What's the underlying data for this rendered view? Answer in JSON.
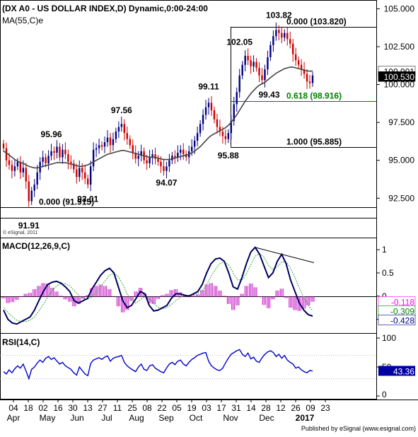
{
  "chart_data": {
    "type": "candlestick",
    "title": "(DX A0 - US DOLLAR INDEX,D) Dynamic,0:00-24:00",
    "ma_label": "MA(55,C)e",
    "watermark": "© eSignal, 2011",
    "footer": "Published by eSignal (www.esignal.com)",
    "price_axis": {
      "ticks": [
        "105.000",
        "102.500",
        "100.000",
        "97.500",
        "95.000",
        "92.500"
      ],
      "ylim": [
        91.3,
        105.3
      ]
    },
    "price_tags": [
      {
        "text": "100.901",
        "value": 100.901,
        "bg": "#ffffff",
        "fg": "#000000"
      },
      {
        "text": "100.530",
        "value": 100.53,
        "bg": "#000000",
        "fg": "#ffffff"
      }
    ],
    "price_annotations": [
      {
        "text": "91.91",
        "value": 91.91,
        "idx": 9
      },
      {
        "text": "95.96",
        "value": 95.96,
        "idx": 17
      },
      {
        "text": "93.01",
        "value": 93.01,
        "idx": 30
      },
      {
        "text": "97.56",
        "value": 97.56,
        "idx": 42
      },
      {
        "text": "94.07",
        "value": 94.07,
        "idx": 58
      },
      {
        "text": "99.11",
        "value": 99.11,
        "idx": 73
      },
      {
        "text": "95.88",
        "value": 95.88,
        "idx": 80
      },
      {
        "text": "102.05",
        "value": 102.05,
        "idx": 84
      },
      {
        "text": "103.82",
        "value": 103.82,
        "idx": 98
      },
      {
        "text": "99.43",
        "value": 99.43,
        "idx": 92
      }
    ],
    "fib_levels": [
      {
        "text": "0.000 (103.820)",
        "value": 103.82,
        "color": "#000000"
      },
      {
        "text": "0.618 (98.916)",
        "value": 98.916,
        "color": "#008000"
      },
      {
        "text": "1.000 (95.885)",
        "value": 95.885,
        "color": "#000000"
      },
      {
        "text": "0.000 (91.915)",
        "value": 91.915,
        "color": "#000000"
      }
    ],
    "closes": [
      95.8,
      95.0,
      94.7,
      94.3,
      94.6,
      94.9,
      94.2,
      94.5,
      93.6,
      92.3,
      93.0,
      93.4,
      94.2,
      94.9,
      95.2,
      94.8,
      95.3,
      95.6,
      95.5,
      95.9,
      95.2,
      95.7,
      95.4,
      94.9,
      94.8,
      94.4,
      93.9,
      94.5,
      94.2,
      93.8,
      93.4,
      94.6,
      95.7,
      95.8,
      96.0,
      95.9,
      96.2,
      96.5,
      96.0,
      96.4,
      96.9,
      97.2,
      97.4,
      96.8,
      96.4,
      96.0,
      95.5,
      95.1,
      95.3,
      95.6,
      95.0,
      94.8,
      95.2,
      95.4,
      95.1,
      94.9,
      94.6,
      94.3,
      94.6,
      95.0,
      95.3,
      95.2,
      95.5,
      95.7,
      95.4,
      95.2,
      95.6,
      95.9,
      96.3,
      96.8,
      97.4,
      98.0,
      98.5,
      98.8,
      98.3,
      97.7,
      97.2,
      96.9,
      96.6,
      96.4,
      96.8,
      97.6,
      98.7,
      99.5,
      100.6,
      101.3,
      101.9,
      101.6,
      101.2,
      101.5,
      101.1,
      100.6,
      100.3,
      101.0,
      101.8,
      102.6,
      103.2,
      103.6,
      103.4,
      103.1,
      103.4,
      103.0,
      102.7,
      102.0,
      101.6,
      101.3,
      101.0,
      100.7,
      100.2,
      100.1,
      100.6
    ],
    "ma55": [
      95.6,
      95.5,
      95.35,
      95.2,
      95.05,
      94.95,
      94.85,
      94.8,
      94.7,
      94.6,
      94.55,
      94.5,
      94.5,
      94.55,
      94.6,
      94.65,
      94.7,
      94.75,
      94.8,
      94.85,
      94.85,
      94.85,
      94.85,
      94.8,
      94.75,
      94.7,
      94.65,
      94.6,
      94.6,
      94.65,
      94.7,
      94.8,
      94.9,
      95.0,
      95.1,
      95.2,
      95.3,
      95.4,
      95.45,
      95.5,
      95.55,
      95.6,
      95.65,
      95.65,
      95.6,
      95.55,
      95.5,
      95.45,
      95.4,
      95.35,
      95.3,
      95.25,
      95.2,
      95.2,
      95.2,
      95.15,
      95.1,
      95.05,
      95.05,
      95.05,
      95.1,
      95.15,
      95.2,
      95.25,
      95.3,
      95.35,
      95.4,
      95.5,
      95.6,
      95.75,
      95.9,
      96.1,
      96.3,
      96.5,
      96.65,
      96.75,
      96.85,
      96.95,
      97.05,
      97.15,
      97.3,
      97.5,
      97.75,
      98.0,
      98.3,
      98.6,
      98.9,
      99.15,
      99.4,
      99.6,
      99.8,
      99.95,
      100.05,
      100.15,
      100.3,
      100.45,
      100.6,
      100.75,
      100.85,
      100.95,
      101.05,
      101.1,
      101.15,
      101.15,
      101.1,
      101.05,
      101.0,
      100.95,
      100.9,
      100.88,
      100.9
    ],
    "macd": {
      "label": "MACD(12,26,9,C)",
      "ticks": [
        "1",
        "0.5",
        "0",
        "-0.5"
      ],
      "ylim": [
        -0.75,
        1.2
      ],
      "tags": [
        {
          "text": "-0.118",
          "value": -0.118,
          "color": "#ff00ff"
        },
        {
          "text": "-0.309",
          "value": -0.309,
          "color": "#008000"
        },
        {
          "text": "-0.428",
          "value": -0.428,
          "color": "#000080"
        }
      ],
      "macd_line": [
        -0.3,
        -0.5,
        -0.58,
        -0.6,
        -0.55,
        -0.5,
        -0.45,
        -0.3,
        -0.1,
        0.1,
        0.25,
        0.3,
        0.32,
        0.28,
        0.2,
        0.1,
        -0.1,
        -0.15,
        -0.1,
        -0.05,
        0.15,
        0.3,
        0.45,
        0.55,
        0.6,
        0.5,
        0.2,
        -0.1,
        -0.25,
        -0.2,
        -0.05,
        0.1,
        0.05,
        -0.2,
        -0.32,
        -0.3,
        -0.25,
        -0.2,
        -0.05,
        0.05,
        0.05,
        0.02,
        0.0,
        0.05,
        0.1,
        0.25,
        0.5,
        0.7,
        0.8,
        0.82,
        0.75,
        0.5,
        0.2,
        0.15,
        0.4,
        0.7,
        0.95,
        1.05,
        0.9,
        0.65,
        0.4,
        0.5,
        0.75,
        0.9,
        0.7,
        0.35,
        0.1,
        -0.15,
        -0.3,
        -0.4,
        -0.43
      ],
      "signal_line": [
        -0.25,
        -0.35,
        -0.45,
        -0.52,
        -0.55,
        -0.55,
        -0.52,
        -0.45,
        -0.32,
        -0.18,
        -0.02,
        0.12,
        0.22,
        0.27,
        0.27,
        0.22,
        0.12,
        0.02,
        -0.05,
        -0.07,
        -0.02,
        0.08,
        0.2,
        0.33,
        0.45,
        0.5,
        0.42,
        0.25,
        0.05,
        -0.1,
        -0.15,
        -0.08,
        0.0,
        -0.05,
        -0.15,
        -0.24,
        -0.27,
        -0.25,
        -0.18,
        -0.1,
        -0.03,
        0.01,
        0.02,
        0.03,
        0.06,
        0.12,
        0.25,
        0.42,
        0.58,
        0.7,
        0.74,
        0.67,
        0.5,
        0.35,
        0.35,
        0.48,
        0.68,
        0.86,
        0.92,
        0.84,
        0.66,
        0.57,
        0.63,
        0.74,
        0.74,
        0.6,
        0.4,
        0.17,
        -0.03,
        -0.2,
        -0.31
      ],
      "histogram": [
        -0.05,
        -0.15,
        -0.13,
        -0.08,
        0.0,
        0.05,
        0.07,
        0.15,
        0.22,
        0.28,
        0.27,
        0.18,
        0.1,
        0.01,
        -0.07,
        -0.12,
        -0.22,
        -0.17,
        -0.05,
        0.02,
        0.17,
        0.22,
        0.25,
        0.22,
        0.15,
        0.0,
        -0.22,
        -0.35,
        -0.3,
        -0.1,
        0.1,
        0.18,
        0.05,
        -0.15,
        -0.17,
        -0.06,
        0.02,
        0.05,
        0.13,
        0.15,
        0.08,
        0.01,
        -0.02,
        0.02,
        0.04,
        0.13,
        0.25,
        0.28,
        0.22,
        0.12,
        0.01,
        -0.17,
        -0.3,
        -0.2,
        0.05,
        0.22,
        0.27,
        0.19,
        -0.02,
        -0.19,
        -0.26,
        -0.07,
        0.12,
        0.16,
        -0.04,
        -0.25,
        -0.3,
        -0.32,
        -0.27,
        -0.2,
        -0.12
      ],
      "divergence_line": [
        [
          57,
          1.05
        ],
        [
          70,
          0.72
        ]
      ]
    },
    "rsi": {
      "label": "RSI(14,C)",
      "ticks": [
        "100",
        "50",
        "0"
      ],
      "ylim": [
        0,
        100
      ],
      "tag": {
        "text": "43.36",
        "value": 43.36
      },
      "values": [
        42,
        38,
        45,
        40,
        47,
        52,
        48,
        55,
        43,
        30,
        46,
        50,
        57,
        62,
        58,
        65,
        68,
        63,
        66,
        60,
        55,
        58,
        52,
        49,
        46,
        40,
        36,
        50,
        44,
        38,
        35,
        56,
        62,
        64,
        66,
        63,
        67,
        69,
        60,
        65,
        67,
        68,
        70,
        58,
        52,
        48,
        45,
        42,
        50,
        55,
        46,
        44,
        52,
        54,
        48,
        45,
        42,
        40,
        48,
        55,
        58,
        54,
        60,
        62,
        55,
        52,
        58,
        63,
        66,
        70,
        72,
        74,
        75,
        60,
        52,
        48,
        45,
        44,
        48,
        57,
        65,
        72,
        75,
        78,
        80,
        72,
        68,
        74,
        64,
        67,
        60,
        58,
        66,
        72,
        76,
        78,
        75,
        68,
        72,
        65,
        70,
        62,
        58,
        55,
        48,
        50,
        45,
        42,
        40,
        44,
        43
      ]
    },
    "x_axis": {
      "days": [
        "04",
        "18",
        "02",
        "16",
        "30",
        "13",
        "27",
        "11",
        "25",
        "08",
        "22",
        "05",
        "19",
        "03",
        "17",
        "31",
        "14",
        "28",
        "12",
        "26",
        "09",
        "23"
      ],
      "months": [
        "Apr",
        "May",
        "Jun",
        "Jul",
        "Aug",
        "Sep",
        "Oct",
        "Nov",
        "Dec",
        "2017"
      ]
    }
  }
}
